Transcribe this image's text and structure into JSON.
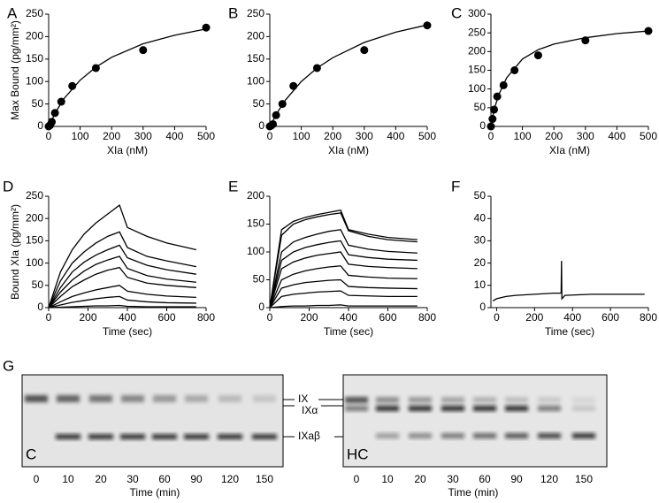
{
  "chart_data": [
    {
      "type": "scatter",
      "panel": "A",
      "xlabel": "XIa (nM)",
      "ylabel": "Max Bound (pg/mm²)",
      "xlim": [
        0,
        500
      ],
      "xticks": [
        0,
        100,
        200,
        300,
        400,
        500
      ],
      "ylim": [
        0,
        250
      ],
      "yticks": [
        0,
        50,
        100,
        150,
        200,
        250
      ],
      "series": [
        {
          "mode": "markers",
          "color": "#000000",
          "x": [
            0,
            5,
            10,
            20,
            40,
            75,
            150,
            300,
            500
          ],
          "values": [
            0,
            3,
            10,
            30,
            55,
            90,
            130,
            170,
            220
          ]
        },
        {
          "mode": "lines",
          "color": "#000000",
          "x": [
            0,
            25,
            50,
            100,
            150,
            200,
            300,
            400,
            500
          ],
          "values": [
            0,
            35,
            63,
            103,
            132,
            154,
            184,
            203,
            217
          ]
        }
      ]
    },
    {
      "type": "scatter",
      "panel": "B",
      "xlabel": "XIa (nM)",
      "xlim": [
        0,
        500
      ],
      "xticks": [
        0,
        100,
        200,
        300,
        400,
        500
      ],
      "ylim": [
        0,
        250
      ],
      "yticks": [
        0,
        50,
        100,
        150,
        200,
        250
      ],
      "series": [
        {
          "mode": "markers",
          "color": "#000000",
          "x": [
            0,
            5,
            10,
            20,
            40,
            75,
            150,
            300,
            500
          ],
          "values": [
            0,
            2,
            5,
            25,
            50,
            90,
            130,
            170,
            225
          ]
        },
        {
          "mode": "lines",
          "color": "#000000",
          "x": [
            0,
            25,
            50,
            100,
            150,
            200,
            300,
            400,
            500
          ],
          "values": [
            0,
            32,
            59,
            100,
            130,
            153,
            187,
            210,
            226
          ]
        }
      ]
    },
    {
      "type": "scatter",
      "panel": "C",
      "xlabel": "XIa (nM)",
      "xlim": [
        0,
        500
      ],
      "xticks": [
        0,
        100,
        200,
        300,
        400,
        500
      ],
      "ylim": [
        0,
        300
      ],
      "yticks": [
        0,
        50,
        100,
        150,
        200,
        250,
        300
      ],
      "series": [
        {
          "mode": "markers",
          "color": "#000000",
          "x": [
            0,
            5,
            10,
            20,
            40,
            75,
            150,
            300,
            500
          ],
          "values": [
            0,
            20,
            45,
            80,
            110,
            150,
            190,
            230,
            255
          ]
        },
        {
          "mode": "lines",
          "color": "#000000",
          "x": [
            0,
            10,
            25,
            50,
            100,
            150,
            200,
            300,
            400,
            500
          ],
          "values": [
            0,
            45,
            85,
            130,
            180,
            205,
            220,
            237,
            248,
            255
          ]
        }
      ]
    },
    {
      "type": "line",
      "panel": "D",
      "xlabel": "Time (sec)",
      "ylabel": "Bound XIa (pg/mm²)",
      "xlim": [
        0,
        800
      ],
      "xticks": [
        0,
        200,
        400,
        600,
        800
      ],
      "ylim": [
        0,
        250
      ],
      "yticks": [
        0,
        50,
        100,
        150,
        200,
        250
      ],
      "x": [
        0,
        60,
        120,
        180,
        240,
        300,
        360,
        400,
        500,
        600,
        750
      ],
      "series": [
        {
          "color": "#000000",
          "values": [
            0,
            80,
            130,
            165,
            190,
            210,
            230,
            180,
            160,
            145,
            130
          ]
        },
        {
          "color": "#000000",
          "values": [
            0,
            60,
            100,
            125,
            145,
            160,
            170,
            135,
            115,
            105,
            92
          ]
        },
        {
          "color": "#000000",
          "values": [
            0,
            45,
            80,
            102,
            118,
            130,
            140,
            112,
            95,
            85,
            75
          ]
        },
        {
          "color": "#000000",
          "values": [
            0,
            35,
            62,
            82,
            97,
            107,
            115,
            88,
            72,
            64,
            57
          ]
        },
        {
          "color": "#000000",
          "values": [
            0,
            25,
            47,
            62,
            75,
            84,
            90,
            68,
            55,
            50,
            45
          ]
        },
        {
          "color": "#000000",
          "values": [
            0,
            13,
            25,
            33,
            40,
            45,
            50,
            37,
            30,
            26,
            23
          ]
        },
        {
          "color": "#000000",
          "values": [
            0,
            6,
            12,
            16,
            20,
            23,
            25,
            17,
            13,
            11,
            10
          ]
        },
        {
          "color": "#000000",
          "values": [
            0,
            1,
            2,
            3,
            4,
            4,
            5,
            3,
            2,
            2,
            2
          ]
        }
      ]
    },
    {
      "type": "line",
      "panel": "E",
      "xlabel": "Time (sec)",
      "xlim": [
        0,
        800
      ],
      "xticks": [
        0,
        200,
        400,
        600,
        800
      ],
      "ylim": [
        0,
        200
      ],
      "yticks": [
        0,
        50,
        100,
        150,
        200
      ],
      "x": [
        0,
        60,
        120,
        180,
        240,
        300,
        360,
        400,
        500,
        600,
        750
      ],
      "series": [
        {
          "color": "#000000",
          "values": [
            0,
            140,
            155,
            162,
            167,
            171,
            175,
            140,
            132,
            126,
            122
          ]
        },
        {
          "color": "#000000",
          "values": [
            0,
            130,
            150,
            158,
            163,
            167,
            170,
            138,
            128,
            122,
            118
          ]
        },
        {
          "color": "#000000",
          "values": [
            0,
            100,
            118,
            126,
            132,
            137,
            140,
            112,
            105,
            101,
            98
          ]
        },
        {
          "color": "#000000",
          "values": [
            0,
            85,
            100,
            108,
            113,
            117,
            120,
            95,
            90,
            87,
            85
          ]
        },
        {
          "color": "#000000",
          "values": [
            0,
            70,
            82,
            89,
            94,
            97,
            100,
            78,
            74,
            72,
            70
          ]
        },
        {
          "color": "#000000",
          "values": [
            0,
            50,
            60,
            66,
            70,
            73,
            75,
            58,
            55,
            53,
            52
          ]
        },
        {
          "color": "#000000",
          "values": [
            0,
            35,
            41,
            45,
            47,
            49,
            50,
            38,
            36,
            35,
            34
          ]
        },
        {
          "color": "#000000",
          "values": [
            0,
            20,
            24,
            26,
            28,
            29,
            30,
            22,
            21,
            20,
            20
          ]
        },
        {
          "color": "#000000",
          "values": [
            0,
            2,
            3,
            3,
            4,
            4,
            5,
            3,
            3,
            3,
            3
          ]
        }
      ]
    },
    {
      "type": "line",
      "panel": "F",
      "xlabel": "Time (sec)",
      "xlim": [
        -30,
        800
      ],
      "xticks": [
        0,
        200,
        400,
        600,
        800
      ],
      "ylim": [
        0,
        50
      ],
      "yticks": [
        0,
        10,
        20,
        30,
        40,
        50
      ],
      "x": [
        -20,
        0,
        50,
        100,
        200,
        300,
        340,
        342,
        344,
        360,
        500,
        780
      ],
      "series": [
        {
          "color": "#000000",
          "values": [
            3,
            4,
            5,
            5.5,
            6,
            6.5,
            6.5,
            21,
            4,
            5.5,
            6,
            6
          ]
        }
      ]
    }
  ],
  "gels": {
    "panel": "G",
    "xlabel": "Time (min)",
    "lanes": [
      "0",
      "10",
      "20",
      "30",
      "60",
      "90",
      "120",
      "150"
    ],
    "left_tag": "C",
    "right_tag": "HC",
    "band_labels": [
      "IX",
      "IXα",
      "IXaβ"
    ]
  }
}
